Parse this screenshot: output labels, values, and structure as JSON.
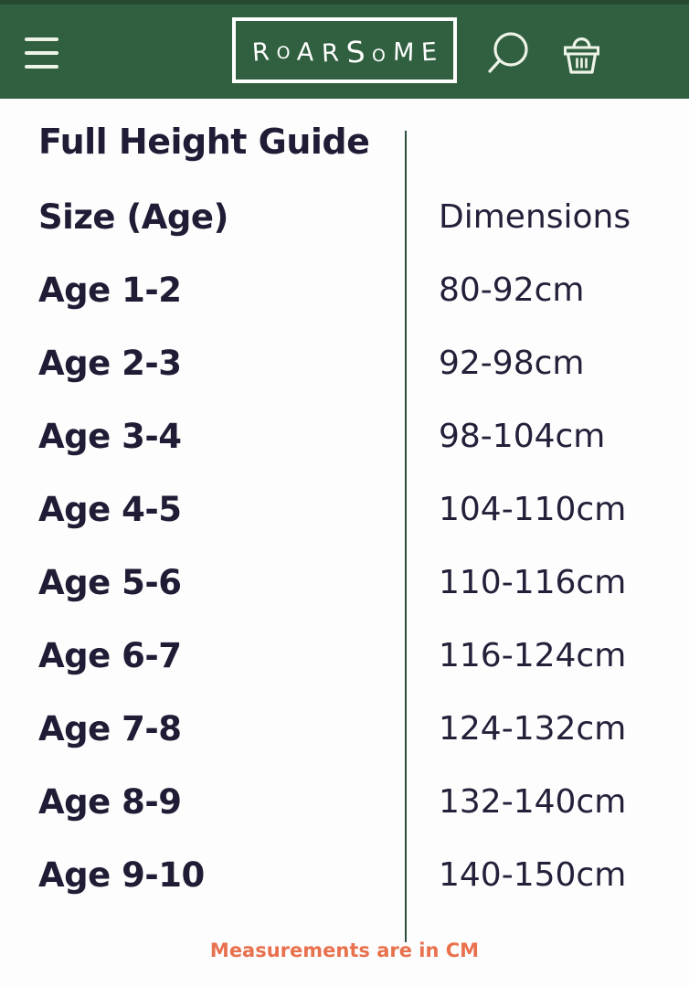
{
  "header": {
    "logo_text": "ROARSOME",
    "icons": {
      "menu": "hamburger-menu",
      "search": "magnifying-glass",
      "cart": "shopping-basket"
    }
  },
  "guide": {
    "title": "Full Height Guide",
    "columns": {
      "size": "Size (Age)",
      "dimensions": "Dimensions"
    },
    "rows": [
      {
        "age": "Age 1-2",
        "dim": "80-92cm"
      },
      {
        "age": "Age 2-3",
        "dim": "92-98cm"
      },
      {
        "age": "Age 3-4",
        "dim": "98-104cm"
      },
      {
        "age": "Age 4-5",
        "dim": "104-110cm"
      },
      {
        "age": "Age 5-6",
        "dim": "110-116cm"
      },
      {
        "age": "Age 6-7",
        "dim": "116-124cm"
      },
      {
        "age": "Age 7-8",
        "dim": "124-132cm"
      },
      {
        "age": "Age 8-9",
        "dim": "132-140cm"
      },
      {
        "age": "Age 9-10",
        "dim": "140-150cm"
      }
    ],
    "note": "Measurements are in CM"
  },
  "colors": {
    "header_green": "#30603f",
    "header_top_strip": "#27492f",
    "icon_white": "#eef3e8",
    "text_dark": "#201c35",
    "divider_green": "#2c4f3b",
    "accent_orange": "#e8714e"
  }
}
